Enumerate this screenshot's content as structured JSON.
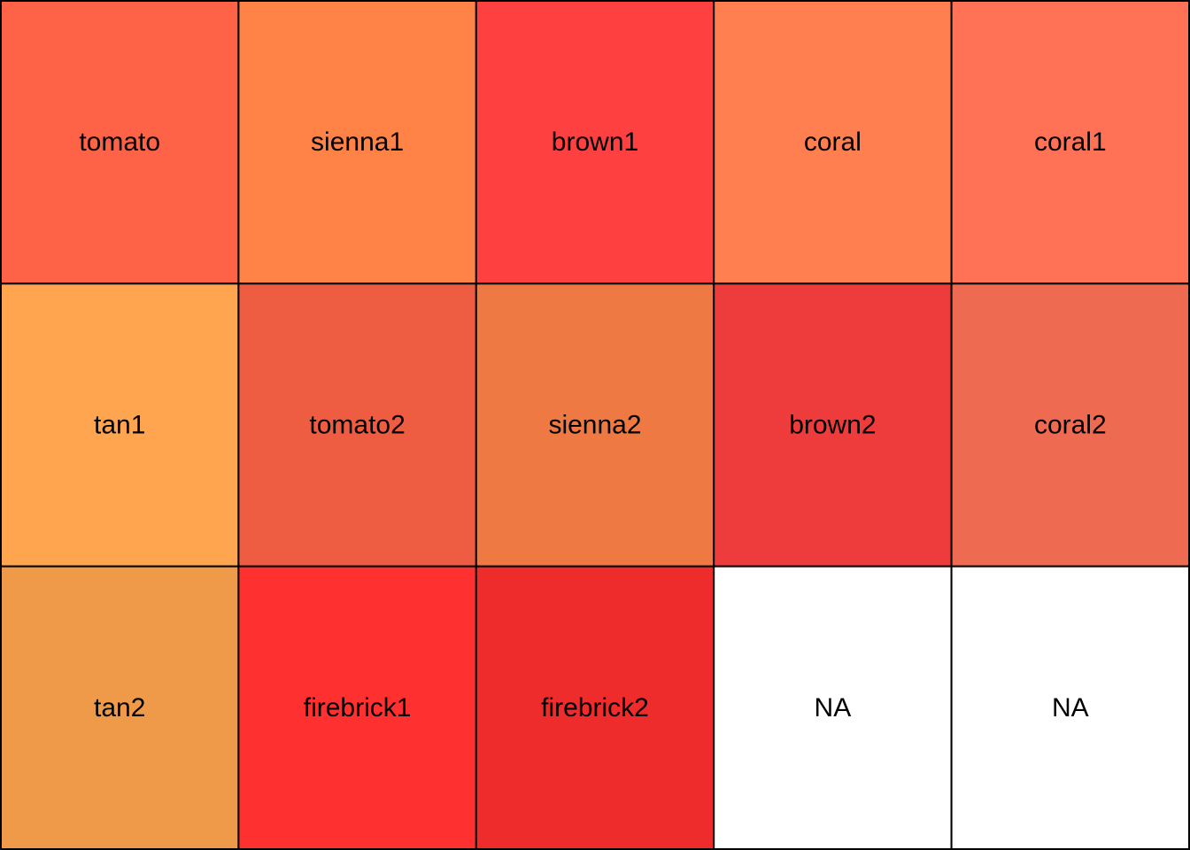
{
  "chart_data": {
    "type": "heatmap",
    "title": "",
    "xlabel": "",
    "ylabel": "",
    "grid": true,
    "rows": 3,
    "cols": 5,
    "cells": [
      {
        "label": "tomato",
        "color": "#FF6347"
      },
      {
        "label": "sienna1",
        "color": "#FF8247"
      },
      {
        "label": "brown1",
        "color": "#FF4040"
      },
      {
        "label": "coral",
        "color": "#FF7F50"
      },
      {
        "label": "coral1",
        "color": "#FF7256"
      },
      {
        "label": "tan1",
        "color": "#FFA54F"
      },
      {
        "label": "tomato2",
        "color": "#EE5C42"
      },
      {
        "label": "sienna2",
        "color": "#EE7942"
      },
      {
        "label": "brown2",
        "color": "#EE3B3B"
      },
      {
        "label": "coral2",
        "color": "#EE6A50"
      },
      {
        "label": "tan2",
        "color": "#EE9A49"
      },
      {
        "label": "firebrick1",
        "color": "#FF3030"
      },
      {
        "label": "firebrick2",
        "color": "#EE2C2C"
      },
      {
        "label": "NA",
        "color": "#FFFFFF"
      },
      {
        "label": "NA",
        "color": "#FFFFFF"
      }
    ]
  }
}
